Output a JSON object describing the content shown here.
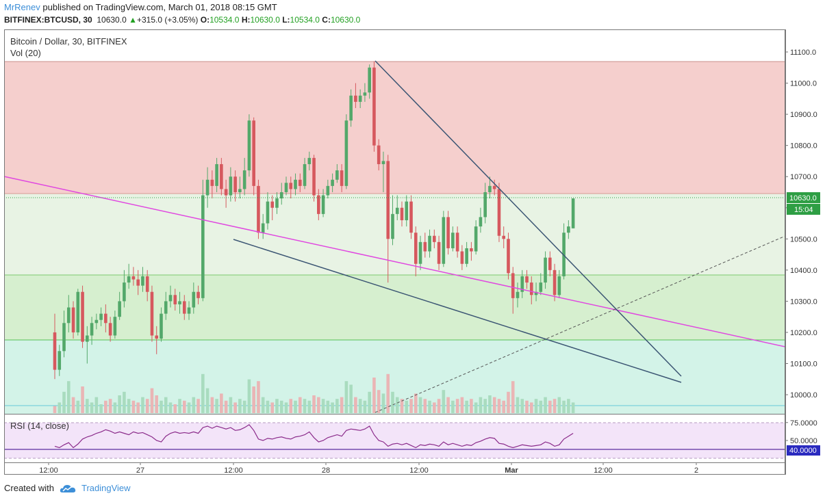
{
  "header": {
    "author": "MrRenev",
    "published_text": "published on TradingView.com, March 01, 2018 08:15 GMT",
    "symbol": "BITFINEX:BTCUSD, 30",
    "last_price": "10630.0",
    "change": "+315.0 (+3.05%)",
    "o_label": "O:",
    "o_value": "10534.0",
    "h_label": "H:",
    "h_value": "10630.0",
    "l_label": "L:",
    "l_value": "10534.0",
    "c_label": "C:",
    "c_value": "10630.0"
  },
  "legend": {
    "title": "Bitcoin / Dollar, 30, BITFINEX",
    "volume": "Vol (20)",
    "rsi": "RSI (14, close)"
  },
  "price_badges": {
    "price": "10630.0",
    "timer": "15:04",
    "rsi": "40.0000"
  },
  "colors": {
    "up": "#53a86a",
    "down": "#d6585e",
    "zone_red": "#f5cfcd",
    "zone_green_light": "#e8f3e4",
    "zone_green": "#d6efcf",
    "zone_teal": "#d3f3e8",
    "pink_line": "#e048e0",
    "trend_line": "#3b5573",
    "rsi_bg": "#f3e4f9",
    "rsi_line": "#8a2a8a",
    "rsi_level": "#5b2ca0",
    "price_badge": "#2e9e44",
    "rsi_badge": "#2a2abf"
  },
  "footer": {
    "created_with": "Created with",
    "brand": "TradingView",
    "brand_icon": "tradingview-cloud-icon"
  },
  "chart_data": [
    {
      "type": "candlestick",
      "title": "Bitcoin / Dollar, 30, BITFINEX",
      "interval_minutes": 30,
      "x_ticks": [
        "12:00",
        "27",
        "12:00",
        "28",
        "12:00",
        "Mar",
        "12:00",
        "2"
      ],
      "y_ticks": [
        10000,
        10100,
        10200,
        10300,
        10400,
        10500,
        10600,
        10700,
        10800,
        10900,
        11000,
        11100
      ],
      "ylim": [
        9960,
        11160
      ],
      "last_price": 10630.0,
      "candles": [
        [
          10200,
          10080,
          10260,
          10050
        ],
        [
          10080,
          10140,
          10160,
          10060
        ],
        [
          10140,
          10230,
          10270,
          10120
        ],
        [
          10230,
          10280,
          10320,
          10200
        ],
        [
          10280,
          10200,
          10300,
          10180
        ],
        [
          10200,
          10330,
          10340,
          10190
        ],
        [
          10330,
          10170,
          10350,
          10150
        ],
        [
          10170,
          10190,
          10220,
          10100
        ],
        [
          10190,
          10230,
          10250,
          10160
        ],
        [
          10230,
          10240,
          10260,
          10210
        ],
        [
          10240,
          10260,
          10280,
          10220
        ],
        [
          10260,
          10230,
          10290,
          10200
        ],
        [
          10230,
          10190,
          10250,
          10170
        ],
        [
          10190,
          10250,
          10270,
          10180
        ],
        [
          10250,
          10300,
          10330,
          10240
        ],
        [
          10300,
          10360,
          10400,
          10280
        ],
        [
          10360,
          10380,
          10420,
          10340
        ],
        [
          10380,
          10370,
          10410,
          10350
        ],
        [
          10370,
          10350,
          10400,
          10320
        ],
        [
          10350,
          10380,
          10410,
          10330
        ],
        [
          10380,
          10330,
          10400,
          10300
        ],
        [
          10330,
          10190,
          10350,
          10170
        ],
        [
          10190,
          10180,
          10220,
          10130
        ],
        [
          10180,
          10260,
          10280,
          10170
        ],
        [
          10260,
          10300,
          10330,
          10240
        ],
        [
          10300,
          10320,
          10350,
          10280
        ],
        [
          10320,
          10290,
          10340,
          10270
        ],
        [
          10290,
          10300,
          10330,
          10260
        ],
        [
          10300,
          10260,
          10320,
          10240
        ],
        [
          10260,
          10280,
          10300,
          10240
        ],
        [
          10280,
          10330,
          10360,
          10260
        ],
        [
          10330,
          10310,
          10350,
          10290
        ],
        [
          10310,
          10640,
          10690,
          10300
        ],
        [
          10640,
          10690,
          10730,
          10600
        ],
        [
          10690,
          10670,
          10720,
          10630
        ],
        [
          10670,
          10740,
          10760,
          10650
        ],
        [
          10740,
          10660,
          10760,
          10640
        ],
        [
          10660,
          10640,
          10690,
          10600
        ],
        [
          10640,
          10700,
          10730,
          10620
        ],
        [
          10700,
          10650,
          10720,
          10620
        ],
        [
          10650,
          10660,
          10700,
          10630
        ],
        [
          10660,
          10720,
          10760,
          10640
        ],
        [
          10720,
          10880,
          10900,
          10700
        ],
        [
          10880,
          10670,
          10890,
          10640
        ],
        [
          10670,
          10520,
          10690,
          10500
        ],
        [
          10520,
          10550,
          10580,
          10500
        ],
        [
          10550,
          10620,
          10650,
          10530
        ],
        [
          10620,
          10600,
          10640,
          10560
        ],
        [
          10600,
          10630,
          10650,
          10580
        ],
        [
          10630,
          10650,
          10680,
          10610
        ],
        [
          10650,
          10680,
          10700,
          10640
        ],
        [
          10680,
          10660,
          10700,
          10630
        ],
        [
          10660,
          10690,
          10710,
          10640
        ],
        [
          10690,
          10670,
          10710,
          10650
        ],
        [
          10670,
          10740,
          10760,
          10660
        ],
        [
          10740,
          10760,
          10780,
          10720
        ],
        [
          10760,
          10640,
          10770,
          10620
        ],
        [
          10640,
          10580,
          10660,
          10560
        ],
        [
          10580,
          10640,
          10660,
          10570
        ],
        [
          10640,
          10670,
          10690,
          10630
        ],
        [
          10670,
          10690,
          10710,
          10650
        ],
        [
          10690,
          10720,
          10740,
          10680
        ],
        [
          10720,
          10670,
          10740,
          10650
        ],
        [
          10670,
          10880,
          10900,
          10660
        ],
        [
          10880,
          10960,
          10980,
          10860
        ],
        [
          10960,
          10940,
          11000,
          10920
        ],
        [
          10940,
          10960,
          10980,
          10920
        ],
        [
          10960,
          10970,
          11000,
          10940
        ],
        [
          10970,
          11050,
          11060,
          10950
        ],
        [
          11050,
          10800,
          11070,
          10780
        ],
        [
          10800,
          10740,
          10820,
          10720
        ],
        [
          10740,
          10750,
          10780,
          10650
        ],
        [
          10750,
          10500,
          10770,
          10360
        ],
        [
          10500,
          10580,
          10640,
          10480
        ],
        [
          10580,
          10600,
          10640,
          10560
        ],
        [
          10600,
          10560,
          10620,
          10540
        ],
        [
          10560,
          10620,
          10640,
          10540
        ],
        [
          10620,
          10520,
          10640,
          10500
        ],
        [
          10520,
          10420,
          10540,
          10380
        ],
        [
          10420,
          10490,
          10510,
          10400
        ],
        [
          10490,
          10460,
          10520,
          10440
        ],
        [
          10460,
          10510,
          10530,
          10440
        ],
        [
          10510,
          10490,
          10530,
          10470
        ],
        [
          10490,
          10420,
          10510,
          10400
        ],
        [
          10420,
          10570,
          10590,
          10410
        ],
        [
          10570,
          10470,
          10590,
          10450
        ],
        [
          10470,
          10520,
          10540,
          10460
        ],
        [
          10520,
          10460,
          10540,
          10440
        ],
        [
          10460,
          10420,
          10480,
          10400
        ],
        [
          10420,
          10470,
          10490,
          10410
        ],
        [
          10470,
          10460,
          10490,
          10430
        ],
        [
          10460,
          10540,
          10560,
          10450
        ],
        [
          10540,
          10570,
          10600,
          10520
        ],
        [
          10570,
          10650,
          10680,
          10550
        ],
        [
          10650,
          10670,
          10700,
          10630
        ],
        [
          10670,
          10660,
          10690,
          10640
        ],
        [
          10660,
          10510,
          10680,
          10490
        ],
        [
          10510,
          10500,
          10540,
          10470
        ],
        [
          10500,
          10390,
          10520,
          10370
        ],
        [
          10390,
          10310,
          10410,
          10260
        ],
        [
          10310,
          10330,
          10360,
          10280
        ],
        [
          10330,
          10380,
          10400,
          10310
        ],
        [
          10380,
          10360,
          10400,
          10340
        ],
        [
          10360,
          10320,
          10380,
          10290
        ],
        [
          10320,
          10330,
          10360,
          10300
        ],
        [
          10330,
          10360,
          10390,
          10320
        ],
        [
          10360,
          10440,
          10460,
          10340
        ],
        [
          10440,
          10400,
          10460,
          10380
        ],
        [
          10400,
          10320,
          10420,
          10300
        ],
        [
          10320,
          10380,
          10400,
          10310
        ],
        [
          10380,
          10520,
          10550,
          10370
        ],
        [
          10520,
          10540,
          10560,
          10500
        ],
        [
          10534,
          10630,
          10630,
          10534
        ]
      ]
    },
    {
      "type": "bar",
      "title": "Vol (20)",
      "values": [
        4,
        6,
        12,
        18,
        9,
        7,
        15,
        8,
        6,
        9,
        5,
        7,
        8,
        6,
        10,
        12,
        8,
        7,
        6,
        9,
        8,
        14,
        10,
        7,
        9,
        6,
        5,
        8,
        7,
        6,
        9,
        8,
        22,
        14,
        9,
        8,
        11,
        7,
        9,
        6,
        8,
        7,
        19,
        15,
        18,
        9,
        7,
        6,
        8,
        7,
        6,
        8,
        7,
        9,
        8,
        7,
        10,
        9,
        8,
        7,
        6,
        8,
        9,
        18,
        16,
        9,
        8,
        7,
        12,
        20,
        13,
        11,
        22,
        12,
        9,
        8,
        7,
        8,
        11,
        9,
        8,
        7,
        6,
        8,
        13,
        9,
        7,
        8,
        9,
        7,
        8,
        6,
        9,
        8,
        10,
        9,
        8,
        7,
        12,
        18,
        9,
        8,
        7,
        6,
        8,
        7,
        9,
        7,
        8,
        9,
        7,
        8,
        6
      ]
    },
    {
      "type": "line",
      "title": "RSI (14, close)",
      "y_ticks": [
        50.0,
        75.0
      ],
      "ylim": [
        35,
        80
      ],
      "levels": [
        40.0
      ],
      "values": [
        42,
        40,
        44,
        47,
        40,
        45,
        52,
        55,
        57,
        60,
        62,
        65,
        63,
        60,
        62,
        60,
        58,
        62,
        60,
        61,
        58,
        55,
        50,
        48,
        56,
        60,
        62,
        60,
        61,
        60,
        62,
        60,
        68,
        70,
        67,
        70,
        68,
        66,
        68,
        64,
        65,
        68,
        72,
        64,
        52,
        50,
        53,
        52,
        54,
        55,
        53,
        52,
        55,
        56,
        58,
        62,
        54,
        48,
        50,
        54,
        56,
        58,
        56,
        64,
        66,
        65,
        64,
        66,
        70,
        58,
        50,
        48,
        42,
        45,
        46,
        44,
        46,
        43,
        40,
        44,
        43,
        45,
        44,
        42,
        48,
        44,
        46,
        44,
        42,
        44,
        43,
        47,
        49,
        52,
        54,
        53,
        46,
        45,
        42,
        40,
        42,
        44,
        43,
        42,
        43,
        44,
        48,
        46,
        42,
        44,
        52,
        56,
        60
      ]
    }
  ]
}
